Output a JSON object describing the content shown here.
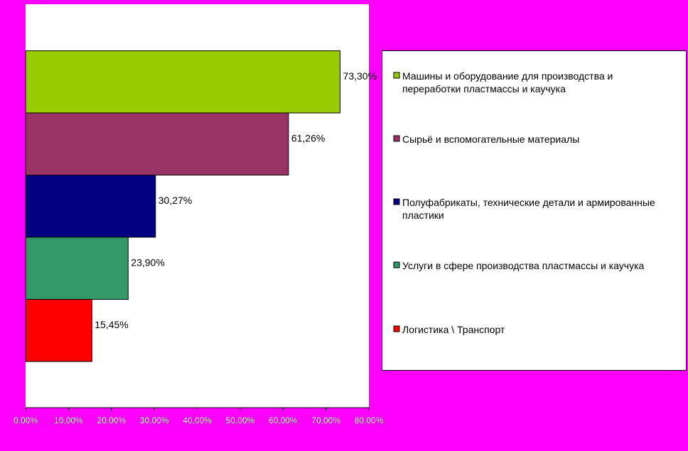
{
  "chart_data": {
    "type": "bar",
    "orientation": "horizontal",
    "title": "",
    "xlabel": "",
    "ylabel": "",
    "xlim": [
      0,
      80
    ],
    "x_ticks": [
      0,
      10,
      20,
      30,
      40,
      50,
      60,
      70,
      80
    ],
    "x_tick_labels": [
      "0,00%",
      "10,00%",
      "20,00%",
      "30,00%",
      "40,00%",
      "50,00%",
      "60,00%",
      "70,00%",
      "80,00%"
    ],
    "grid": false,
    "legend_position": "right",
    "categories": [
      "Машины и оборудование для производства и переработки пластмассы и каучука",
      "Сырьё и вспомогательные материалы",
      "Полуфабрикаты, технические детали и армированные пластики",
      "Услуги в сфере производства пластмассы и каучука",
      "Логистика \\ Транспорт"
    ],
    "legend_lines": [
      [
        "Машины и оборудование для производства и",
        "переработки пластмассы и каучука"
      ],
      [
        "Сырьё и вспомогательные материалы"
      ],
      [
        "Полуфабрикаты, технические детали и армированные",
        "пластики"
      ],
      [
        "Услуги в сфере производства пластмассы и каучука"
      ],
      [
        "Логистика \\ Транспорт"
      ]
    ],
    "values": [
      73.3,
      61.26,
      30.27,
      23.9,
      15.45
    ],
    "value_labels": [
      "73,30%",
      "61,26%",
      "30,27%",
      "23,90%",
      "15,45%"
    ],
    "colors": [
      "#99cc00",
      "#993366",
      "#000080",
      "#339966",
      "#ff0000"
    ],
    "background_color": "#ff00ff",
    "plot_area_color": "#ffffff"
  }
}
